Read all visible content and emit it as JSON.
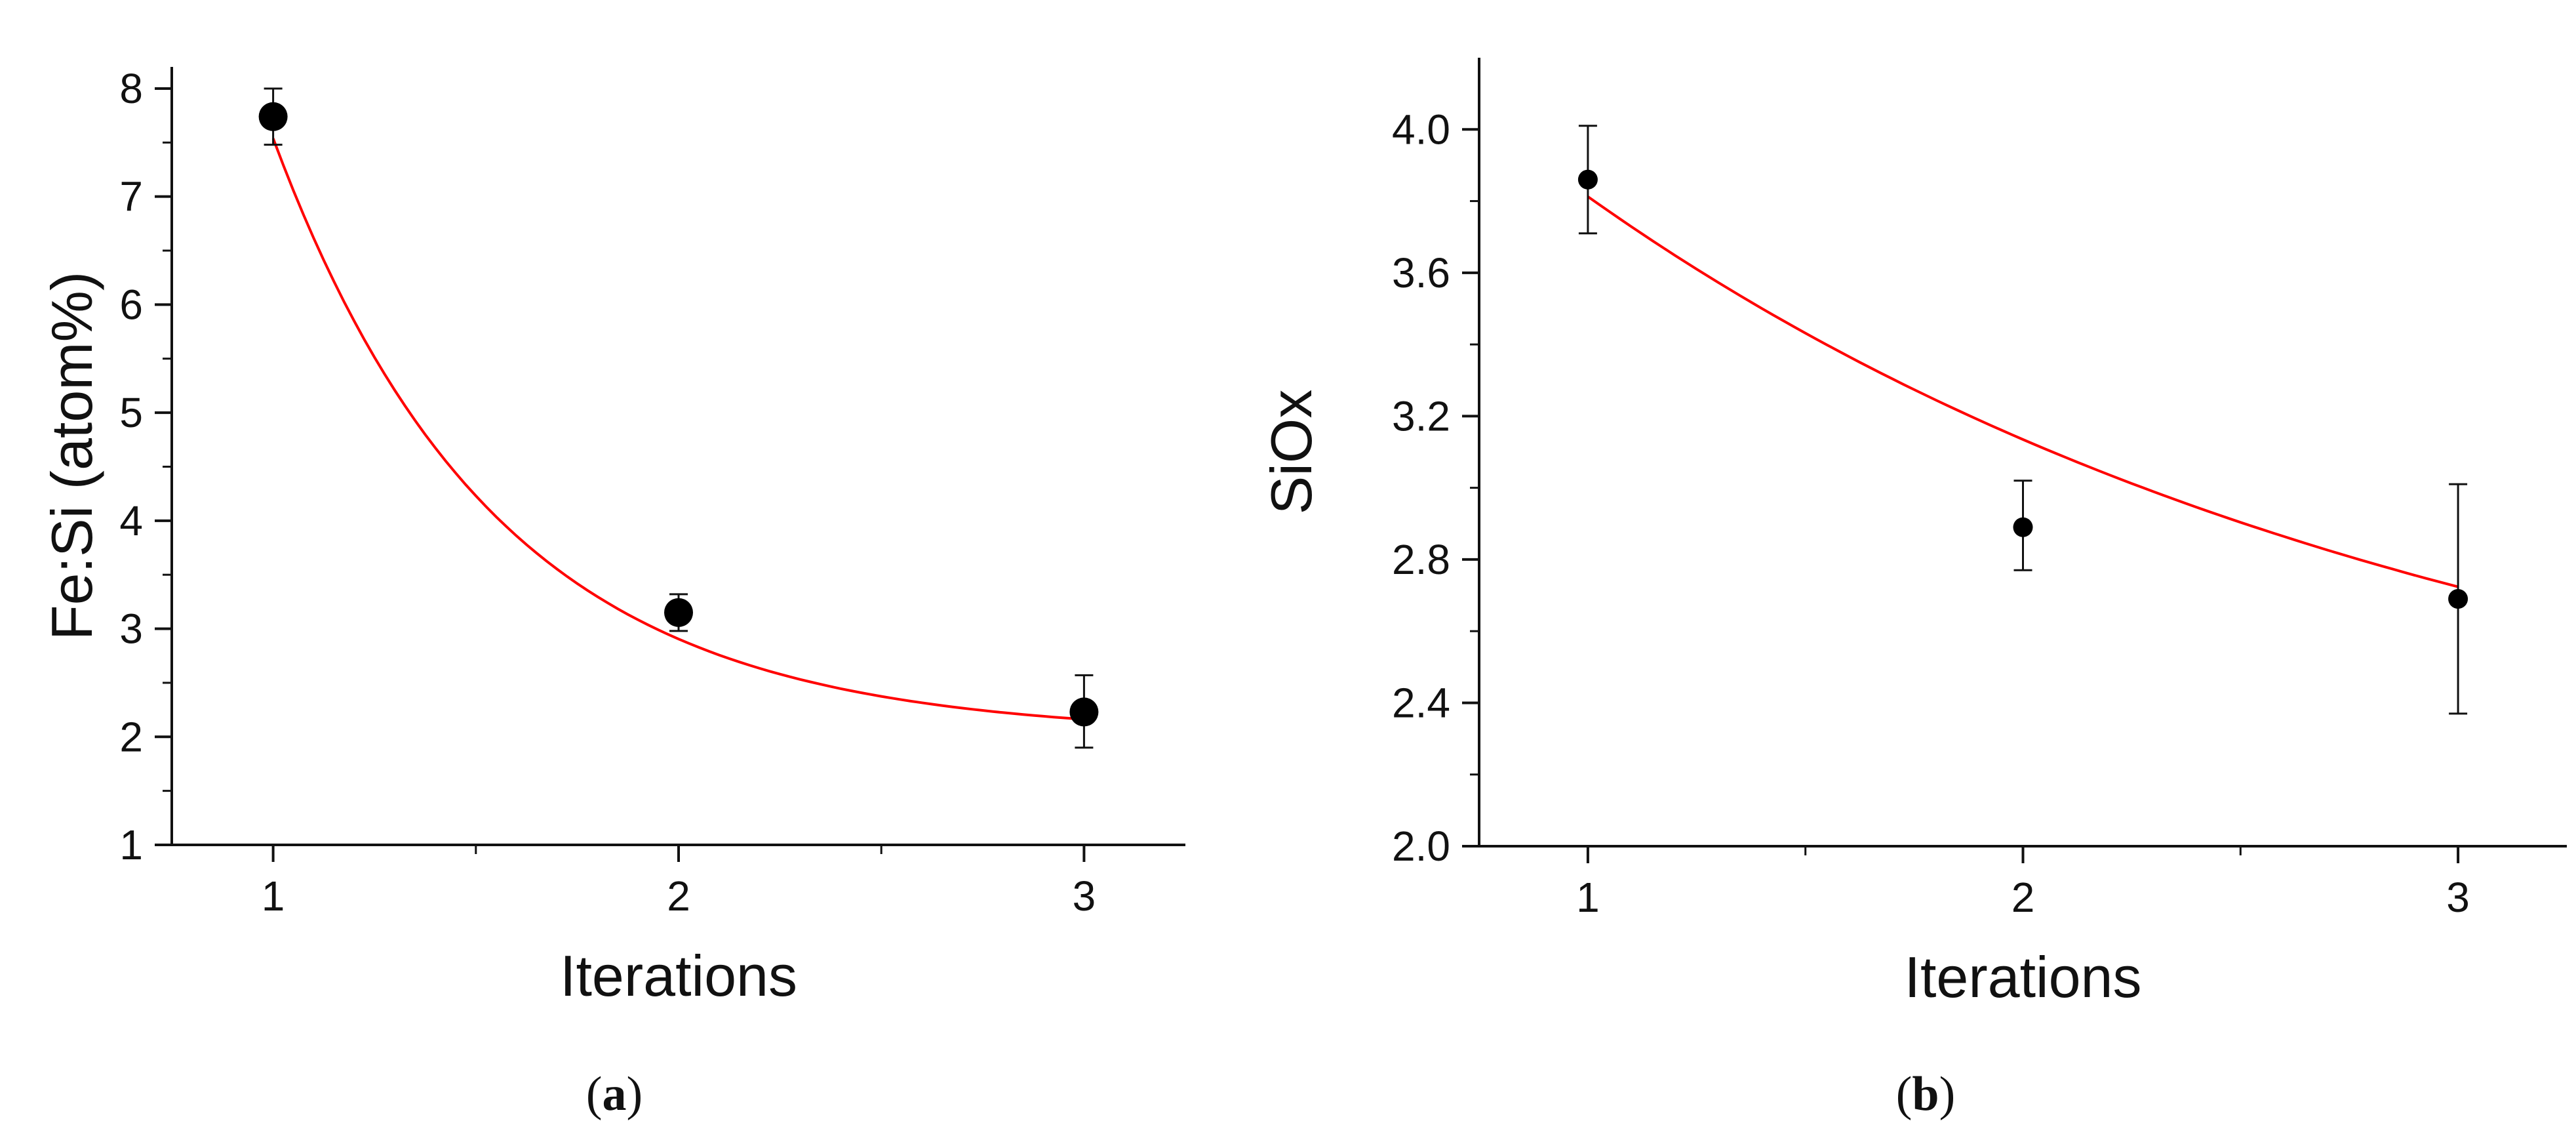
{
  "chart_data": [
    {
      "type": "scatter",
      "caption_letter": "a",
      "xlabel": "Iterations",
      "ylabel": "Fe:Si (atom%)",
      "xlim": [
        0.75,
        3.25
      ],
      "ylim": [
        1,
        8.2
      ],
      "xticks": [
        1,
        2,
        3
      ],
      "yticks": [
        1,
        2,
        3,
        4,
        5,
        6,
        7,
        8
      ],
      "series": [
        {
          "x": [
            1,
            2,
            3
          ],
          "y": [
            7.74,
            3.15,
            2.23
          ],
          "err_low": [
            7.48,
            2.98,
            1.9
          ],
          "err_high": [
            8.0,
            3.32,
            2.57
          ]
        }
      ],
      "fit": {
        "type": "exponential",
        "color": "#ff0000",
        "x": [
          1,
          3
        ],
        "curve": {
          "a": 34.4,
          "k": 1.83,
          "c": 2.02
        }
      },
      "grid": false
    },
    {
      "type": "scatter",
      "caption_letter": "b",
      "xlabel": "Iterations",
      "ylabel": "SiOx",
      "xlim": [
        0.75,
        3.25
      ],
      "ylim": [
        2.0,
        4.2
      ],
      "xticks": [
        1,
        2,
        3
      ],
      "yticks": [
        "2.0",
        "2.4",
        "2.8",
        "3.2",
        "3.6",
        "4.0"
      ],
      "series": [
        {
          "x": [
            1,
            2,
            3
          ],
          "y": [
            3.86,
            2.89,
            2.69
          ],
          "err_low": [
            3.71,
            2.77,
            2.37
          ],
          "err_high": [
            4.01,
            3.02,
            3.01
          ]
        }
      ],
      "fit": {
        "type": "exponential",
        "color": "#ff0000",
        "x": [
          1,
          3
        ],
        "curve": {
          "a": 2.84,
          "k": 0.5,
          "c": 2.09
        }
      },
      "grid": false
    }
  ]
}
